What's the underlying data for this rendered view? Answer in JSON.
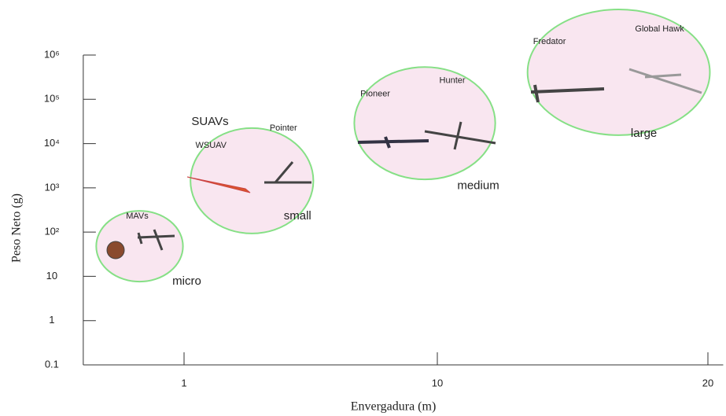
{
  "chart_data": {
    "type": "ellipse-groups",
    "x_label": "Envergadura (m)",
    "y_label": "Peso Neto (g)",
    "xlim": [
      0.4,
      20.8
    ],
    "xticks": [
      1,
      10,
      20
    ],
    "ylim": [
      0.1,
      1000000
    ],
    "y_log": true,
    "yticks": [
      0.1,
      1,
      10,
      {
        "value": 100,
        "label": "10²"
      },
      {
        "value": 1000,
        "label": "10³"
      },
      {
        "value": 10000,
        "label": "10⁴"
      },
      {
        "value": 100000,
        "label": "10⁵"
      },
      {
        "value": 1000000,
        "label": "10⁶"
      }
    ],
    "fill": "#f9e6f0",
    "stroke": "#86e086",
    "annotations": [
      "SUAVs"
    ],
    "groups": [
      {
        "name": "micro",
        "xrange": [
          0.45,
          0.99
        ],
        "yrange": [
          7.6,
          302
        ],
        "labels": [
          "MAVs"
        ]
      },
      {
        "name": "small",
        "xrange": [
          1.06,
          3.24
        ],
        "yrange": [
          93,
          22400
        ],
        "labels": [
          "WSUAV",
          "Pointer"
        ]
      },
      {
        "name": "medium",
        "xrange": [
          4.7,
          11.6
        ],
        "yrange": [
          1550,
          537000
        ],
        "labels": [
          "Pioneer",
          "Hunter"
        ]
      },
      {
        "name": "large",
        "xrange": [
          12.6,
          20.1
        ],
        "yrange": [
          15500,
          10700000
        ],
        "labels": [
          "Fredator",
          "Global Hawk"
        ]
      }
    ]
  }
}
